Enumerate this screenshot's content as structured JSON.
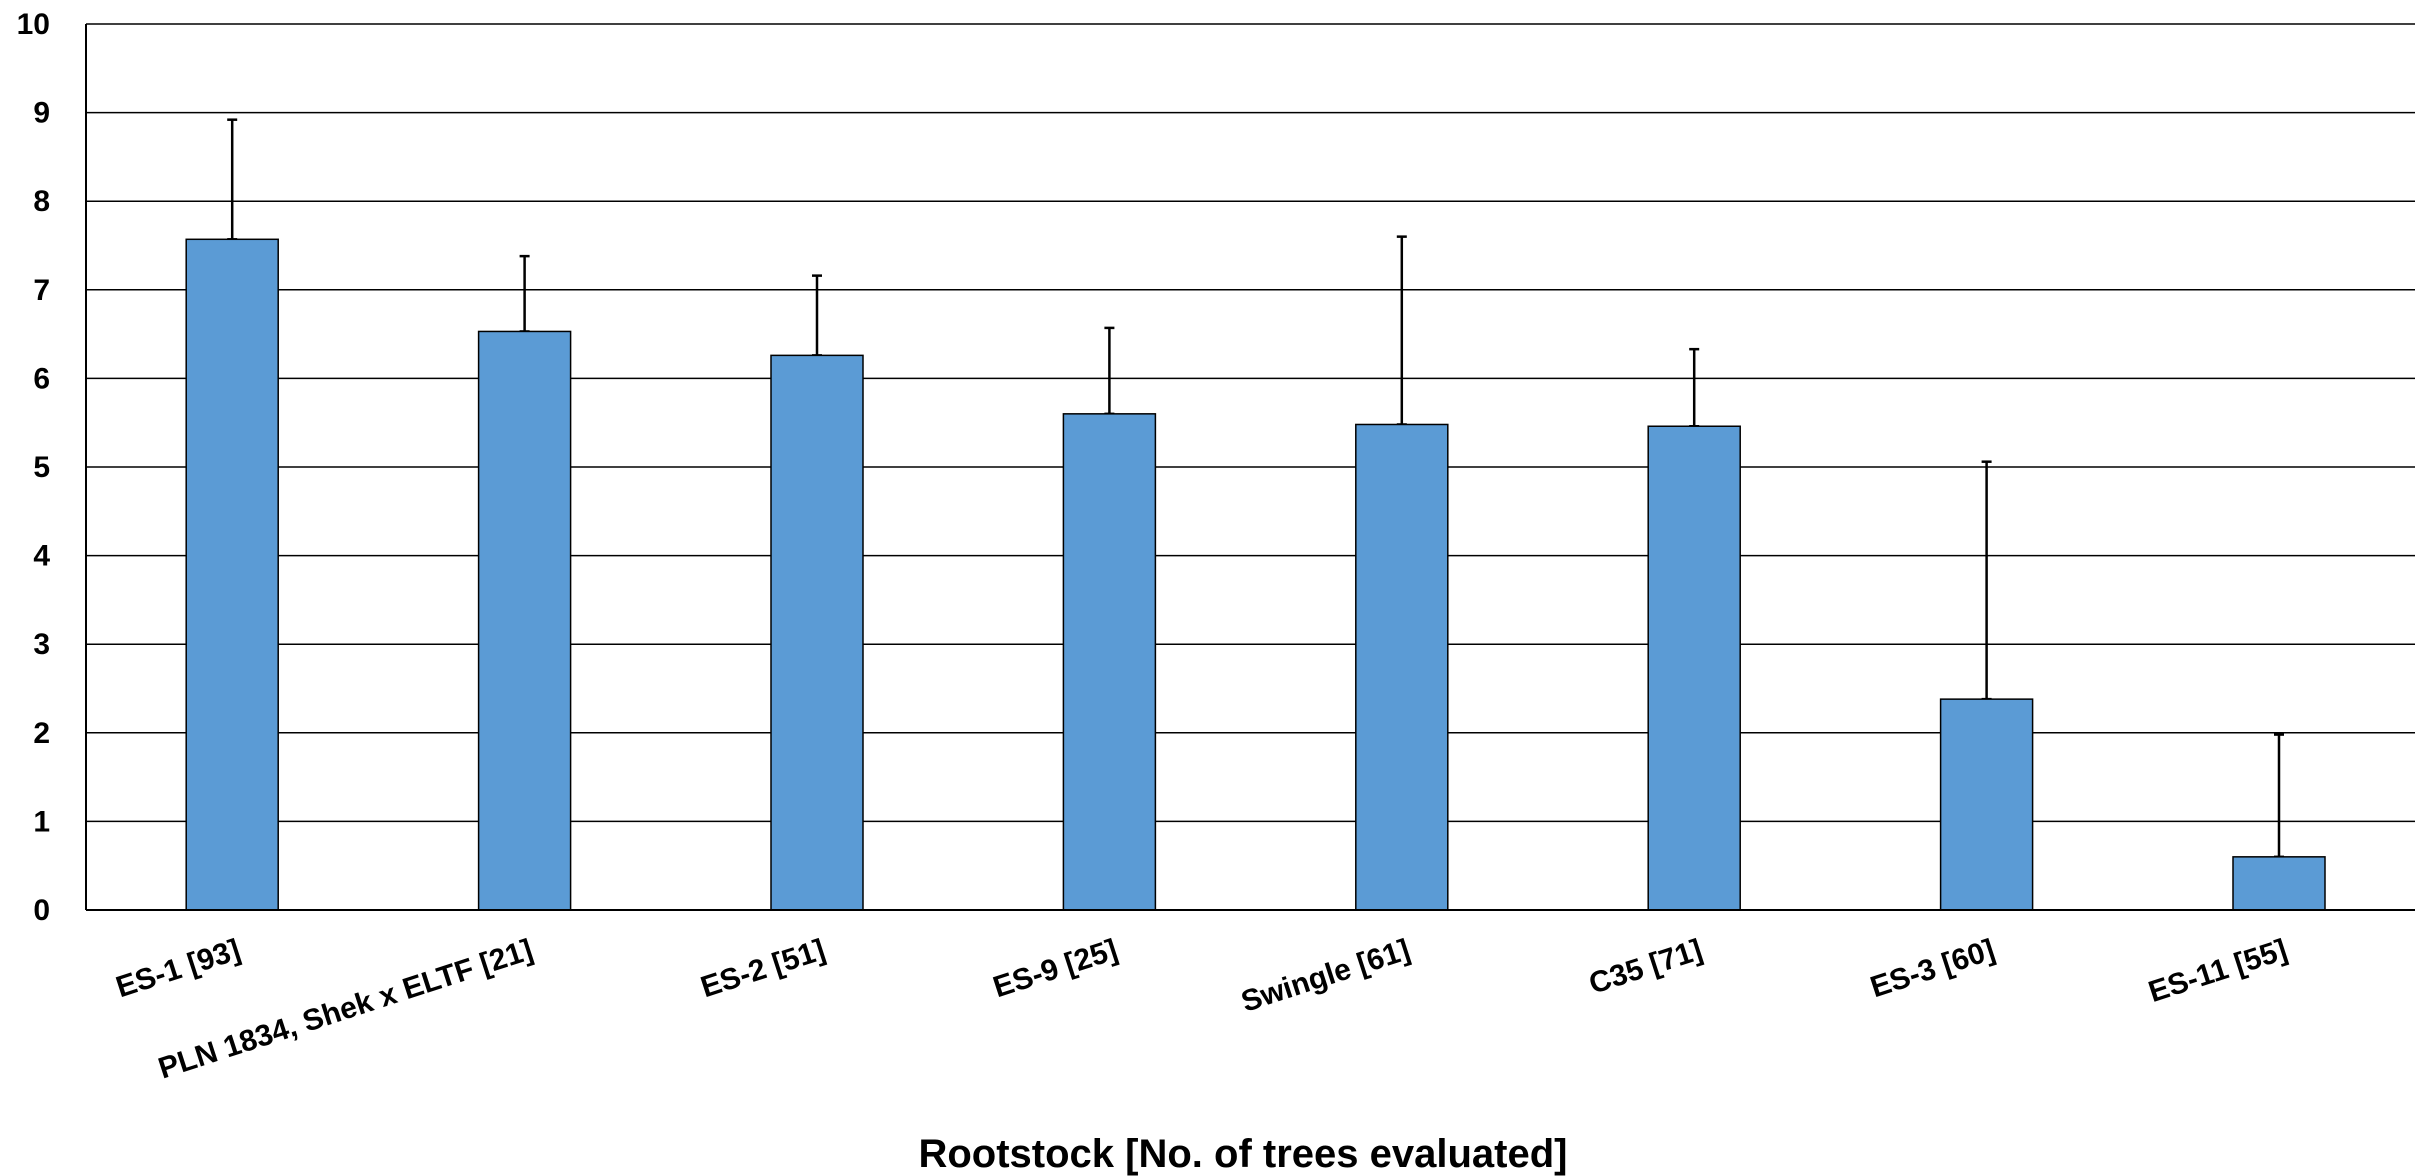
{
  "chart_data": {
    "type": "bar",
    "title": "",
    "xlabel": "Rootstock [No. of trees evaluated]",
    "ylabel": "",
    "ylim": [
      0,
      10
    ],
    "yticks": [
      0,
      1,
      2,
      3,
      4,
      5,
      6,
      7,
      8,
      9,
      10
    ],
    "grid": true,
    "categories": [
      "ES-1 [93]",
      "PLN 1834, Shek x ELTF [21]",
      "ES-2 [51]",
      "ES-9 [25]",
      "Swingle [61]",
      "C35 [71]",
      "ES-3 [60]",
      "ES-11 [55]"
    ],
    "values": [
      7.57,
      6.53,
      6.26,
      5.6,
      5.48,
      5.46,
      2.38,
      0.6
    ],
    "error_upper": [
      1.35,
      0.85,
      0.9,
      0.97,
      2.12,
      0.87,
      2.68,
      1.38
    ],
    "bar_color": "#5B9BD5",
    "bar_outline": "#000000",
    "grid_color": "#000000"
  }
}
